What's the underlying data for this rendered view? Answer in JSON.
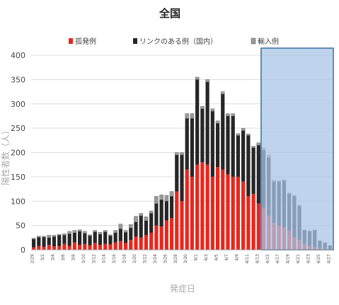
{
  "chart_data": {
    "type": "bar",
    "stacked": true,
    "title": "全国",
    "xlabel": "発症日",
    "ylabel": "陽性者数（人）",
    "ylim": [
      0,
      400
    ],
    "yticks": [
      0,
      50,
      100,
      150,
      200,
      250,
      300,
      350,
      400
    ],
    "grid": true,
    "legend_position": "top",
    "colors": {
      "孤発例": "#e8261c",
      "リンクのある例（国内）": "#262626",
      "輸入例": "#9a9a9a",
      "highlight_fill": "#a9c6e6",
      "highlight_border": "#3a6ea5"
    },
    "highlight_from": "4/14",
    "categories": [
      "2/29",
      "3/1",
      "3/2",
      "3/3",
      "3/4",
      "3/5",
      "3/6",
      "3/7",
      "3/8",
      "3/9",
      "3/10",
      "3/11",
      "3/12",
      "3/13",
      "3/14",
      "3/15",
      "3/16",
      "3/17",
      "3/18",
      "3/19",
      "3/20",
      "3/21",
      "3/22",
      "3/23",
      "3/24",
      "3/25",
      "3/26",
      "3/27",
      "3/28",
      "3/29",
      "3/30",
      "3/31",
      "4/1",
      "4/2",
      "4/3",
      "4/4",
      "4/5",
      "4/6",
      "4/7",
      "4/8",
      "4/9",
      "4/10",
      "4/11",
      "4/12",
      "4/13",
      "4/14",
      "4/15",
      "4/16",
      "4/17",
      "4/18",
      "4/19",
      "4/20",
      "4/21",
      "4/22",
      "4/23",
      "4/24",
      "4/25",
      "4/26",
      "4/27"
    ],
    "xtick_labels": [
      "2/29",
      "3/2",
      "3/4",
      "3/6",
      "3/8",
      "3/10",
      "3/12",
      "3/14",
      "3/16",
      "3/18",
      "3/20",
      "3/22",
      "3/24",
      "3/26",
      "3/28",
      "3/30",
      "4/1",
      "4/3",
      "4/5",
      "4/7",
      "4/9",
      "4/11",
      "4/13",
      "4/15",
      "4/17",
      "4/19",
      "4/21",
      "4/23",
      "4/25",
      "4/27"
    ],
    "series": [
      {
        "name": "孤発例",
        "values": [
          5,
          8,
          6,
          10,
          7,
          8,
          12,
          8,
          15,
          10,
          12,
          9,
          14,
          10,
          12,
          11,
          15,
          18,
          14,
          20,
          27,
          25,
          30,
          35,
          50,
          48,
          60,
          65,
          120,
          100,
          165,
          150,
          175,
          180,
          175,
          150,
          170,
          165,
          155,
          150,
          150,
          140,
          110,
          115,
          95,
          85,
          70,
          55,
          50,
          45,
          40,
          25,
          20,
          12,
          8,
          5,
          3,
          2,
          1
        ]
      },
      {
        "name": "リンクのある例（国内）",
        "values": [
          17,
          18,
          20,
          15,
          20,
          22,
          18,
          25,
          20,
          28,
          22,
          20,
          23,
          22,
          25,
          18,
          20,
          25,
          22,
          25,
          30,
          45,
          30,
          40,
          45,
          55,
          40,
          45,
          75,
          95,
          105,
          120,
          175,
          110,
          170,
          135,
          90,
          155,
          120,
          125,
          85,
          105,
          125,
          95,
          120,
          120,
          120,
          85,
          90,
          97,
          75,
          85,
          70,
          28,
          30,
          35,
          15,
          12,
          8
        ]
      },
      {
        "name": "輸入例",
        "values": [
          2,
          2,
          2,
          5,
          3,
          2,
          3,
          5,
          5,
          3,
          4,
          2,
          3,
          4,
          3,
          2,
          5,
          10,
          4,
          7,
          12,
          5,
          8,
          5,
          15,
          10,
          12,
          10,
          5,
          5,
          10,
          10,
          5,
          5,
          5,
          5,
          5,
          5,
          5,
          5,
          4,
          5,
          3,
          3,
          5,
          5,
          5,
          3,
          2,
          2,
          2,
          2,
          2,
          1,
          1,
          1,
          1,
          1,
          0
        ]
      }
    ]
  }
}
